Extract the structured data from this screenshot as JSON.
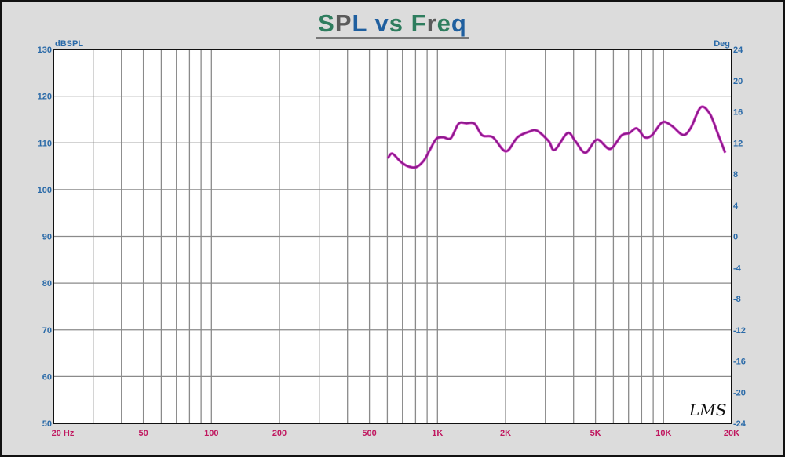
{
  "chart_data": {
    "type": "line",
    "title": "SPL vs Freq",
    "ylabel": "dBSPL",
    "y2label": "Deg",
    "xscale": "log",
    "xlim": [
      20,
      20000
    ],
    "ylim": [
      50,
      130
    ],
    "y2lim": [
      -24,
      24
    ],
    "grid": true,
    "yticks": [
      130,
      120,
      110,
      100,
      90,
      80,
      70,
      60,
      50
    ],
    "y2ticks": [
      24,
      20,
      16,
      12,
      8,
      4,
      0,
      -4,
      -8,
      -12,
      -16,
      -20,
      -24
    ],
    "xticks": [
      {
        "value": 20,
        "label": "20 Hz"
      },
      {
        "value": 50,
        "label": "50"
      },
      {
        "value": 100,
        "label": "100"
      },
      {
        "value": 200,
        "label": "200"
      },
      {
        "value": 500,
        "label": "500"
      },
      {
        "value": 1000,
        "label": "1K"
      },
      {
        "value": 2000,
        "label": "2K"
      },
      {
        "value": 5000,
        "label": "5K"
      },
      {
        "value": 10000,
        "label": "10K"
      },
      {
        "value": 20000,
        "label": "20K"
      }
    ],
    "series": [
      {
        "color": "#8a1a8a",
        "x": [
          603,
          631,
          686,
          739,
          804,
          870,
          930,
          990,
          1060,
          1146,
          1240,
          1340,
          1459,
          1578,
          1758,
          2007,
          2260,
          2548,
          2755,
          3100,
          3300,
          3760,
          4070,
          4510,
          5080,
          5800,
          6520,
          7050,
          7620,
          8250,
          8910,
          9870,
          10840,
          12190,
          13190,
          14600,
          16030,
          17340,
          18730
        ],
        "y": [
          106.7,
          107.7,
          106.0,
          105.0,
          104.8,
          106.2,
          108.7,
          110.9,
          111.2,
          111.0,
          114.1,
          114.2,
          114.1,
          111.6,
          111.2,
          108.2,
          111.2,
          112.4,
          112.6,
          110.4,
          108.5,
          112.1,
          110.4,
          107.9,
          110.7,
          108.7,
          111.6,
          112.1,
          113.1,
          111.2,
          111.7,
          114.4,
          113.7,
          111.7,
          113.2,
          117.6,
          116.2,
          112.1,
          107.9
        ]
      }
    ],
    "logo": "LMS"
  },
  "colors": {
    "background": "#dcdcdc",
    "title_colors": [
      "#2e7d5e",
      "#5a5a5a",
      "#1f5f9f"
    ]
  }
}
